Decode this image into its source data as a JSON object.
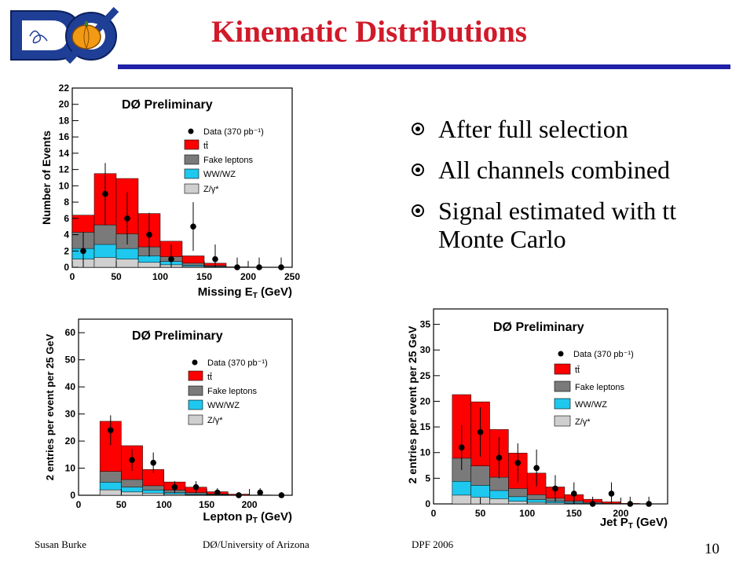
{
  "header": {
    "title": "Kinematic Distributions",
    "logo_text": "DØ"
  },
  "bullets": [
    {
      "text": "After full selection"
    },
    {
      "text": "All channels combined"
    },
    {
      "text": "Signal estimated with tt"
    },
    {
      "text": "Monte Carlo"
    }
  ],
  "footer": {
    "author": "Susan Burke",
    "affiliation": "DØ/University of Arizona",
    "conference": "DPF 2006",
    "page_number": "10"
  },
  "colors": {
    "title": "#d11a2a",
    "rule": "#2020a8",
    "ttbar": "#ff0000",
    "fake": "#7a7a7a",
    "wwwz": "#1ec8ee",
    "zgamma": "#cfcfcf"
  },
  "chart_data": [
    {
      "type": "bar",
      "title": "DØ Preliminary",
      "xlabel": "Missing E",
      "xlabel_sub": "T",
      "xlabel_unit": " (GeV)",
      "ylabel": "Number of Events",
      "xlim": [
        0,
        250
      ],
      "ylim": [
        0,
        22
      ],
      "xticks": [
        0,
        50,
        100,
        150,
        200,
        250
      ],
      "yticks": [
        0,
        2,
        4,
        6,
        8,
        10,
        12,
        14,
        16,
        18,
        20,
        22
      ],
      "bin_edges": [
        0,
        25,
        50,
        75,
        100,
        125,
        150,
        175,
        200,
        225,
        250
      ],
      "legend": [
        "Data (370 pb⁻¹)",
        "tt̄",
        "Fake leptons",
        "WW/WZ",
        "Z/γ*"
      ],
      "series": [
        {
          "name": "Z/γ*",
          "values": [
            1.0,
            1.2,
            1.0,
            0.6,
            0.3,
            0.1,
            0.05,
            0,
            0,
            0
          ]
        },
        {
          "name": "WW/WZ",
          "values": [
            1.3,
            1.6,
            1.3,
            0.8,
            0.4,
            0.15,
            0.05,
            0,
            0,
            0
          ]
        },
        {
          "name": "Fake leptons",
          "values": [
            2.0,
            2.4,
            1.8,
            1.1,
            0.6,
            0.25,
            0.1,
            0,
            0,
            0
          ]
        },
        {
          "name": "tt̄",
          "values": [
            2.1,
            6.3,
            6.8,
            4.1,
            1.9,
            0.9,
            0.3,
            0.05,
            0,
            0
          ]
        }
      ],
      "data": {
        "name": "Data (370 pb⁻¹)",
        "x": [
          12.5,
          37.5,
          62.5,
          87.5,
          112.5,
          137.5,
          162.5,
          187.5,
          212.5,
          237.5
        ],
        "y": [
          2,
          9,
          6,
          4,
          1,
          5,
          1,
          0,
          0,
          0
        ],
        "err": [
          2.3,
          3.8,
          3.2,
          2.7,
          1.8,
          3.0,
          1.8,
          1.2,
          1.2,
          1.2
        ]
      }
    },
    {
      "type": "bar",
      "title": "DØ Preliminary",
      "xlabel": "Lepton p",
      "xlabel_sub": "T",
      "xlabel_unit": " (GeV)",
      "ylabel": "2 entries per event per 25 GeV",
      "xlim": [
        0,
        250
      ],
      "ylim": [
        0,
        65
      ],
      "xticks": [
        0,
        50,
        100,
        150,
        200
      ],
      "yticks": [
        0,
        10,
        20,
        30,
        40,
        50,
        60
      ],
      "bin_edges": [
        25,
        50,
        75,
        100,
        125,
        150,
        175,
        200,
        225,
        250
      ],
      "legend": [
        "Data (370 pb⁻¹)",
        "tt̄",
        "Fake leptons",
        "WW/WZ",
        "Z/γ*"
      ],
      "series": [
        {
          "name": "Z/γ*",
          "values": [
            2.0,
            1.2,
            0.8,
            0.4,
            0.2,
            0.1,
            0,
            0,
            0
          ]
        },
        {
          "name": "WW/WZ",
          "values": [
            2.8,
            1.8,
            1.1,
            0.6,
            0.3,
            0.15,
            0,
            0,
            0
          ]
        },
        {
          "name": "Fake leptons",
          "values": [
            4.0,
            2.8,
            1.6,
            0.9,
            0.5,
            0.25,
            0.1,
            0,
            0
          ]
        },
        {
          "name": "tt̄",
          "values": [
            18.5,
            12.5,
            6.0,
            3.0,
            2.0,
            0.8,
            0.3,
            0.1,
            0
          ]
        }
      ],
      "data": {
        "name": "Data (370 pb⁻¹)",
        "x": [
          37.5,
          62.5,
          87.5,
          112.5,
          137.5,
          162.5,
          187.5,
          212.5,
          237.5
        ],
        "y": [
          24,
          13,
          12,
          3,
          3,
          1,
          0,
          1,
          0
        ],
        "err": [
          5.5,
          4.0,
          3.8,
          2.2,
          2.2,
          1.6,
          1.2,
          1.6,
          1.2
        ]
      }
    },
    {
      "type": "bar",
      "title": "DØ Preliminary",
      "xlabel": "Jet P",
      "xlabel_sub": "T",
      "xlabel_unit": " (GeV)",
      "ylabel": "2 entries per event per 25 GeV",
      "xlim": [
        0,
        250
      ],
      "ylim": [
        0,
        38
      ],
      "xticks": [
        0,
        50,
        100,
        150,
        200
      ],
      "yticks": [
        0,
        5,
        10,
        15,
        20,
        25,
        30,
        35
      ],
      "bin_edges": [
        20,
        40,
        60,
        80,
        100,
        120,
        140,
        160,
        180,
        200,
        220,
        240
      ],
      "legend": [
        "Data (370 pb⁻¹)",
        "tt̄",
        "Fake leptons",
        "WW/WZ",
        "Z/γ*"
      ],
      "series": [
        {
          "name": "Z/γ*",
          "values": [
            1.7,
            1.3,
            1.0,
            0.5,
            0.3,
            0.2,
            0.1,
            0,
            0,
            0,
            0
          ]
        },
        {
          "name": "WW/WZ",
          "values": [
            2.7,
            2.3,
            1.6,
            0.9,
            0.5,
            0.3,
            0.2,
            0.1,
            0,
            0,
            0
          ]
        },
        {
          "name": "Fake leptons",
          "values": [
            4.5,
            3.8,
            2.6,
            1.6,
            1.0,
            0.6,
            0.3,
            0.2,
            0.1,
            0,
            0
          ]
        },
        {
          "name": "tt̄",
          "values": [
            12.4,
            12.5,
            9.3,
            6.9,
            4.2,
            2.2,
            1.2,
            0.6,
            0.3,
            0.1,
            0
          ]
        }
      ],
      "data": {
        "name": "Data (370 pb⁻¹)",
        "x": [
          30,
          50,
          70,
          90,
          110,
          130,
          150,
          170,
          190,
          210,
          230
        ],
        "y": [
          11,
          14,
          9,
          8,
          7,
          3,
          2,
          0,
          2,
          0,
          0
        ],
        "err": [
          4.4,
          4.8,
          4.0,
          3.8,
          3.6,
          2.6,
          2.2,
          1.4,
          2.2,
          1.4,
          1.4
        ]
      }
    }
  ]
}
